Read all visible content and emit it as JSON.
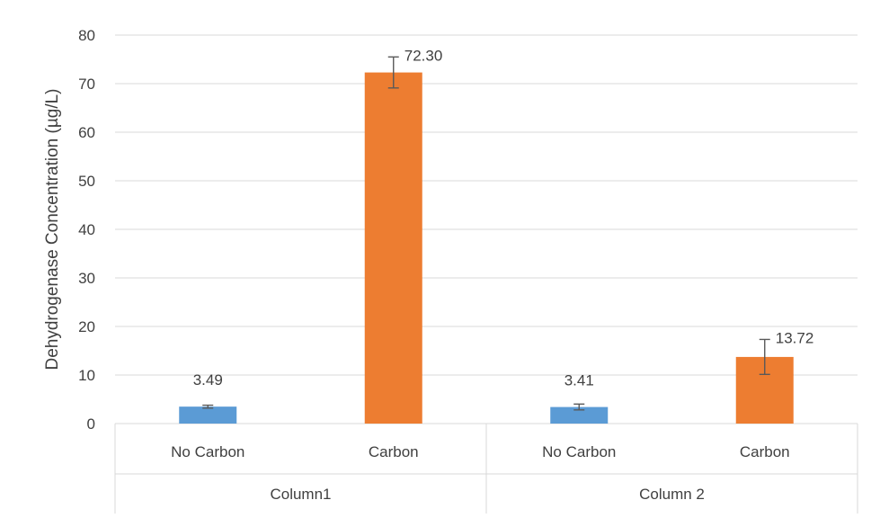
{
  "chart_data": {
    "type": "bar",
    "title": "",
    "ylabel": "Dehydrogenase Concentration (µg/L)",
    "xlabel": "",
    "ylim": [
      0,
      80
    ],
    "y_ticks": [
      0,
      10,
      20,
      30,
      40,
      50,
      60,
      70,
      80
    ],
    "grid": true,
    "legend": "none",
    "groups": [
      {
        "label": "Column1",
        "bars": [
          {
            "category": "No Carbon",
            "value": 3.49,
            "label": "3.49",
            "error": 0.3,
            "color": "#5b9bd5"
          },
          {
            "category": "Carbon",
            "value": 72.3,
            "label": "72.30",
            "error": 3.2,
            "color": "#ed7d31"
          }
        ]
      },
      {
        "label": "Column 2",
        "bars": [
          {
            "category": "No Carbon",
            "value": 3.41,
            "label": "3.41",
            "error": 0.6,
            "color": "#5b9bd5"
          },
          {
            "category": "Carbon",
            "value": 13.72,
            "label": "13.72",
            "error": 3.6,
            "color": "#ed7d31"
          }
        ]
      }
    ]
  }
}
